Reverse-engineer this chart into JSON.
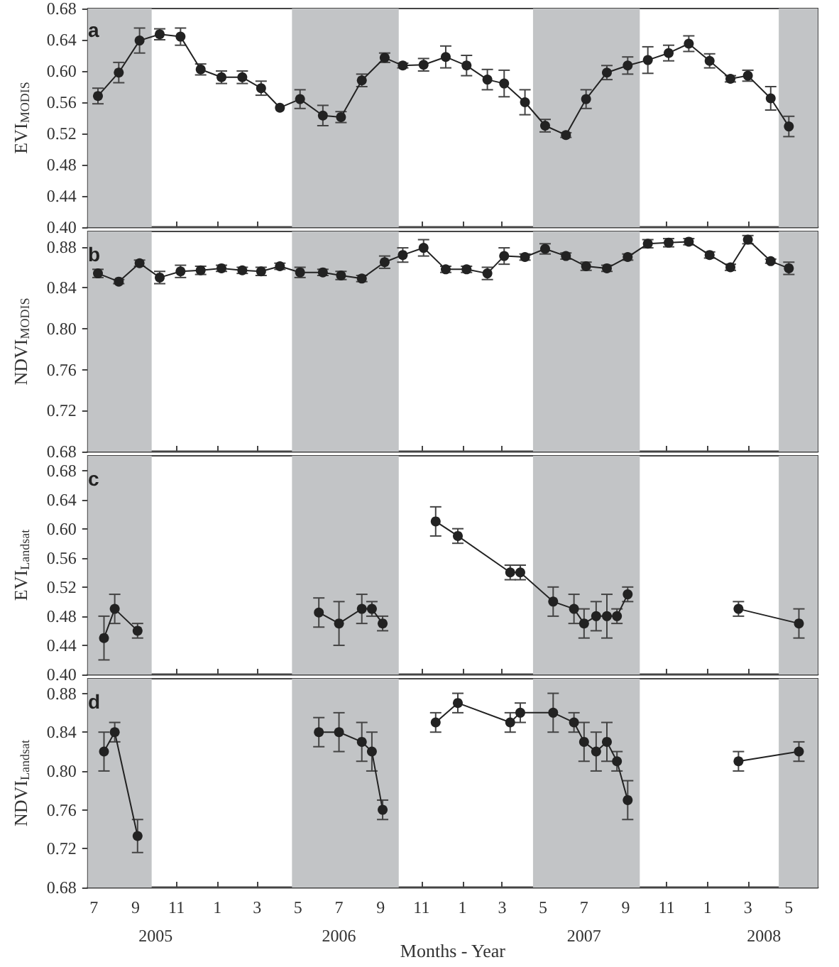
{
  "chart_data": [
    {
      "type": "line",
      "marker": "circle",
      "ylabel": "EVI$_{MODIS}$",
      "annotations": [
        "a"
      ],
      "tick_labels": "y",
      "x": [
        "2005-07-07",
        "2005-08-07",
        "2005-09-07",
        "2005-10-07",
        "2005-11-07",
        "2005-12-07",
        "2006-01-07",
        "2006-02-07",
        "2006-03-07",
        "2006-04-04",
        "2006-05-04",
        "2006-06-07",
        "2006-07-04",
        "2006-08-04",
        "2006-09-07",
        "2006-10-04",
        "2006-11-04",
        "2006-12-07",
        "2007-01-07",
        "2007-02-07",
        "2007-03-04",
        "2007-04-04",
        "2007-05-04",
        "2007-06-04",
        "2007-07-04",
        "2007-08-04",
        "2007-09-04",
        "2007-10-04",
        "2007-11-04",
        "2007-12-04",
        "2008-01-04",
        "2008-02-04",
        "2008-03-01",
        "2008-04-04",
        "2008-05-01"
      ],
      "series": [
        {
          "color": "#222222",
          "values": [
            0.568,
            0.598,
            0.639,
            0.647,
            0.644,
            0.602,
            0.592,
            0.592,
            0.578,
            0.553,
            0.564,
            0.543,
            0.541,
            0.588,
            0.617,
            0.607,
            0.608,
            0.618,
            0.607,
            0.589,
            0.584,
            0.56,
            0.53,
            0.518,
            0.564,
            0.598,
            0.607,
            0.614,
            0.623,
            0.635,
            0.613,
            0.59,
            0.594,
            0.565,
            0.529
          ],
          "errors": [
            0.01,
            0.013,
            0.016,
            0.007,
            0.011,
            0.007,
            0.008,
            0.008,
            0.009,
            null,
            0.012,
            0.013,
            0.007,
            0.008,
            0.006,
            0.003,
            0.008,
            0.014,
            0.013,
            0.013,
            0.017,
            0.016,
            0.008,
            0.003,
            0.012,
            0.009,
            0.011,
            0.017,
            0.01,
            0.01,
            0.009,
            0.004,
            0.007,
            0.015,
            0.013
          ]
        }
      ],
      "xlim": [
        "2005-06-22",
        "2008-06-13"
      ],
      "xticks": [
        "2005-07",
        "2005-09",
        "2005-11",
        "2006-01",
        "2006-03",
        "2006-05",
        "2006-07",
        "2006-09",
        "2006-11",
        "2007-01",
        "2007-03",
        "2007-05",
        "2007-07",
        "2007-09",
        "2007-11",
        "2008-01",
        "2008-03",
        "2008-05"
      ],
      "ylim": [
        0.4,
        0.68
      ],
      "yticks": [
        {
          "value": 0.4,
          "label": "0.40"
        },
        {
          "value": 0.44,
          "label": "0.44"
        },
        {
          "value": 0.48,
          "label": "0.48"
        },
        {
          "value": 0.52,
          "label": "0.52"
        },
        {
          "value": 0.56,
          "label": "0.56"
        },
        {
          "value": 0.6,
          "label": "0.60"
        },
        {
          "value": 0.64,
          "label": "0.64"
        },
        {
          "value": 0.68,
          "label": "0.68"
        }
      ],
      "bands": [
        {
          "axis": "x",
          "from": "2005-06-22",
          "to": "2005-09-25",
          "color": "#c2c4c6"
        },
        {
          "axis": "x",
          "from": "2006-04-22",
          "to": "2006-09-28",
          "color": "#c2c4c6"
        },
        {
          "axis": "x",
          "from": "2007-04-16",
          "to": "2007-09-22",
          "color": "#c2c4c6"
        },
        {
          "axis": "x",
          "from": "2008-04-16",
          "to": "2008-06-13",
          "color": "#c2c4c6"
        }
      ]
    },
    {
      "type": "line",
      "marker": "circle",
      "ylabel": "NDVI$_{MODIS}$",
      "annotations": [
        "b"
      ],
      "tick_labels": "y",
      "x": [
        "2005-07-07",
        "2005-08-07",
        "2005-09-07",
        "2005-10-07",
        "2005-11-07",
        "2005-12-07",
        "2006-01-07",
        "2006-02-07",
        "2006-03-07",
        "2006-04-04",
        "2006-05-04",
        "2006-06-07",
        "2006-07-04",
        "2006-08-04",
        "2006-09-07",
        "2006-10-04",
        "2006-11-04",
        "2006-12-07",
        "2007-01-07",
        "2007-02-07",
        "2007-03-04",
        "2007-04-04",
        "2007-05-04",
        "2007-06-04",
        "2007-07-04",
        "2007-08-04",
        "2007-09-04",
        "2007-10-04",
        "2007-11-04",
        "2007-12-04",
        "2008-01-04",
        "2008-02-04",
        "2008-03-01",
        "2008-04-04",
        "2008-05-01"
      ],
      "series": [
        {
          "color": "#222222",
          "values": [
            0.854,
            0.846,
            0.864,
            0.85,
            0.856,
            0.857,
            0.859,
            0.857,
            0.856,
            0.861,
            0.855,
            0.855,
            0.852,
            0.849,
            0.865,
            0.872,
            0.879,
            0.858,
            0.858,
            0.854,
            0.871,
            0.87,
            0.878,
            0.871,
            0.861,
            0.859,
            0.87,
            0.883,
            0.884,
            0.885,
            0.872,
            0.86,
            0.887,
            0.866,
            0.859
          ],
          "errors": [
            0.004,
            0.002,
            0.003,
            0.006,
            0.006,
            0.004,
            0.003,
            0.003,
            0.004,
            0.003,
            0.005,
            0.003,
            0.004,
            0.003,
            0.006,
            0.007,
            0.008,
            0.003,
            0.003,
            0.006,
            0.008,
            0.003,
            0.005,
            0.003,
            0.004,
            0.003,
            0.003,
            0.004,
            0.004,
            0.003,
            0.003,
            0.003,
            0.004,
            0.002,
            0.006
          ]
        }
      ],
      "xlim": [
        "2005-06-22",
        "2008-06-13"
      ],
      "xticks": [
        "2005-07",
        "2005-09",
        "2005-11",
        "2006-01",
        "2006-03",
        "2006-05",
        "2006-07",
        "2006-09",
        "2006-11",
        "2007-01",
        "2007-03",
        "2007-05",
        "2007-07",
        "2007-09",
        "2007-11",
        "2008-01",
        "2008-03",
        "2008-05"
      ],
      "ylim": [
        0.68,
        0.895
      ],
      "yticks": [
        {
          "value": 0.68,
          "label": "0.68"
        },
        {
          "value": 0.72,
          "label": "0.72"
        },
        {
          "value": 0.76,
          "label": "0.76"
        },
        {
          "value": 0.8,
          "label": "0.80"
        },
        {
          "value": 0.84,
          "label": "0.84"
        },
        {
          "value": 0.88,
          "label": "0.88"
        }
      ],
      "bands": [
        {
          "axis": "x",
          "from": "2005-06-22",
          "to": "2005-09-25",
          "color": "#c2c4c6"
        },
        {
          "axis": "x",
          "from": "2006-04-22",
          "to": "2006-09-28",
          "color": "#c2c4c6"
        },
        {
          "axis": "x",
          "from": "2007-04-16",
          "to": "2007-09-22",
          "color": "#c2c4c6"
        },
        {
          "axis": "x",
          "from": "2008-04-16",
          "to": "2008-06-13",
          "color": "#c2c4c6"
        }
      ]
    },
    {
      "type": "line",
      "marker": "circle",
      "ylabel": "EVI$_{Landsat}$",
      "annotations": [
        "c"
      ],
      "tick_labels": "y",
      "x": [
        "2005-07-16",
        "2005-08-01",
        "2005-09-04",
        "2006-01-01",
        "2006-06-01",
        "2006-07-01",
        "2006-08-04",
        "2006-08-19",
        "2006-09-04",
        "2006-10-13",
        "2006-11-22",
        "2006-12-25",
        "2007-03-13",
        "2007-03-28",
        "2007-05-16",
        "2007-06-16",
        "2007-07-01",
        "2007-07-19",
        "2007-08-04",
        "2007-08-19",
        "2007-09-04",
        "2007-12-01",
        "2008-02-16",
        "2008-05-16"
      ],
      "series": [
        {
          "color": "#222222",
          "values": [
            0.45,
            0.49,
            0.46,
            null,
            0.485,
            0.47,
            0.49,
            0.49,
            0.47,
            null,
            0.61,
            0.59,
            0.54,
            0.54,
            0.5,
            0.49,
            0.47,
            0.48,
            0.48,
            0.48,
            0.51,
            null,
            0.49,
            0.47
          ],
          "errors": [
            0.03,
            0.02,
            0.01,
            null,
            0.02,
            0.03,
            0.02,
            0.01,
            0.01,
            null,
            0.02,
            0.01,
            0.01,
            0.01,
            0.02,
            0.02,
            0.02,
            0.02,
            0.03,
            0.01,
            0.01,
            null,
            0.01,
            0.02
          ]
        }
      ],
      "xlim": [
        "2005-06-22",
        "2008-06-13"
      ],
      "xticks": [
        "2005-07",
        "2005-09",
        "2005-11",
        "2006-01",
        "2006-03",
        "2006-05",
        "2006-07",
        "2006-09",
        "2006-11",
        "2007-01",
        "2007-03",
        "2007-05",
        "2007-07",
        "2007-09",
        "2007-11",
        "2008-01",
        "2008-03",
        "2008-05"
      ],
      "ylim": [
        0.4,
        0.7
      ],
      "yticks": [
        {
          "value": 0.4,
          "label": "0.40"
        },
        {
          "value": 0.44,
          "label": "0.44"
        },
        {
          "value": 0.48,
          "label": "0.48"
        },
        {
          "value": 0.52,
          "label": "0.52"
        },
        {
          "value": 0.56,
          "label": "0.56"
        },
        {
          "value": 0.6,
          "label": "0.60"
        },
        {
          "value": 0.64,
          "label": "0.64"
        },
        {
          "value": 0.68,
          "label": "0.68"
        }
      ],
      "bands": [
        {
          "axis": "x",
          "from": "2005-06-22",
          "to": "2005-09-25",
          "color": "#c2c4c6"
        },
        {
          "axis": "x",
          "from": "2006-04-22",
          "to": "2006-09-28",
          "color": "#c2c4c6"
        },
        {
          "axis": "x",
          "from": "2007-04-16",
          "to": "2007-09-22",
          "color": "#c2c4c6"
        },
        {
          "axis": "x",
          "from": "2008-04-16",
          "to": "2008-06-13",
          "color": "#c2c4c6"
        }
      ]
    },
    {
      "type": "line",
      "marker": "circle",
      "ylabel": "NDVI$_{Landsat}$",
      "xlabel": "Months - Year",
      "annotations": [
        "d"
      ],
      "x": [
        "2005-07-16",
        "2005-08-01",
        "2005-09-04",
        "2006-01-01",
        "2006-06-01",
        "2006-07-01",
        "2006-08-04",
        "2006-08-19",
        "2006-09-04",
        "2006-10-13",
        "2006-11-22",
        "2006-12-25",
        "2007-03-13",
        "2007-03-28",
        "2007-05-16",
        "2007-06-16",
        "2007-07-01",
        "2007-07-19",
        "2007-08-04",
        "2007-08-19",
        "2007-09-04",
        "2007-12-01",
        "2008-02-16",
        "2008-05-16"
      ],
      "series": [
        {
          "color": "#222222",
          "values": [
            0.82,
            0.84,
            0.733,
            null,
            0.84,
            0.84,
            0.83,
            0.82,
            0.76,
            null,
            0.85,
            0.87,
            0.85,
            0.86,
            0.86,
            0.85,
            0.83,
            0.82,
            0.83,
            0.81,
            0.77,
            null,
            0.81,
            0.82
          ],
          "errors": [
            0.02,
            0.01,
            0.017,
            null,
            0.015,
            0.02,
            0.02,
            0.02,
            0.01,
            null,
            0.01,
            0.01,
            0.01,
            0.01,
            0.02,
            0.01,
            0.02,
            0.02,
            0.02,
            0.01,
            0.02,
            null,
            0.01,
            0.01
          ]
        }
      ],
      "xlim": [
        "2005-06-22",
        "2008-06-13"
      ],
      "xticks": [
        {
          "value": "2005-07",
          "label": "7"
        },
        {
          "value": "2005-09",
          "label": "9"
        },
        {
          "value": "2005-11",
          "label": "11"
        },
        {
          "value": "2006-01",
          "label": "1"
        },
        {
          "value": "2006-03",
          "label": "3"
        },
        {
          "value": "2006-05",
          "label": "5"
        },
        {
          "value": "2006-07",
          "label": "7"
        },
        {
          "value": "2006-09",
          "label": "9"
        },
        {
          "value": "2006-11",
          "label": "11"
        },
        {
          "value": "2007-01",
          "label": "1"
        },
        {
          "value": "2007-03",
          "label": "3"
        },
        {
          "value": "2007-05",
          "label": "5"
        },
        {
          "value": "2007-07",
          "label": "7"
        },
        {
          "value": "2007-09",
          "label": "9"
        },
        {
          "value": "2007-11",
          "label": "11"
        },
        {
          "value": "2008-01",
          "label": "1"
        },
        {
          "value": "2008-03",
          "label": "3"
        },
        {
          "value": "2008-05",
          "label": "5"
        }
      ],
      "x2lim": [
        "2005-06-22",
        "2008-06-13"
      ],
      "x2ticks": [
        {
          "value": "2005-10-01",
          "label": "2005"
        },
        {
          "value": "2006-07-01",
          "label": "2006"
        },
        {
          "value": "2007-07-01",
          "label": "2007"
        },
        {
          "value": "2008-03-25",
          "label": "2008"
        }
      ],
      "ylim": [
        0.68,
        0.895
      ],
      "yticks": [
        {
          "value": 0.68,
          "label": "0.68"
        },
        {
          "value": 0.72,
          "label": "0.72"
        },
        {
          "value": 0.76,
          "label": "0.76"
        },
        {
          "value": 0.8,
          "label": "0.80"
        },
        {
          "value": 0.84,
          "label": "0.84"
        },
        {
          "value": 0.88,
          "label": "0.88"
        }
      ],
      "bands": [
        {
          "axis": "x",
          "from": "2005-06-22",
          "to": "2005-09-25",
          "color": "#c2c4c6"
        },
        {
          "axis": "x",
          "from": "2006-04-22",
          "to": "2006-09-28",
          "color": "#c2c4c6"
        },
        {
          "axis": "x",
          "from": "2007-04-16",
          "to": "2007-09-22",
          "color": "#c2c4c6"
        },
        {
          "axis": "x",
          "from": "2008-04-16",
          "to": "2008-06-13",
          "color": "#c2c4c6"
        }
      ]
    }
  ]
}
